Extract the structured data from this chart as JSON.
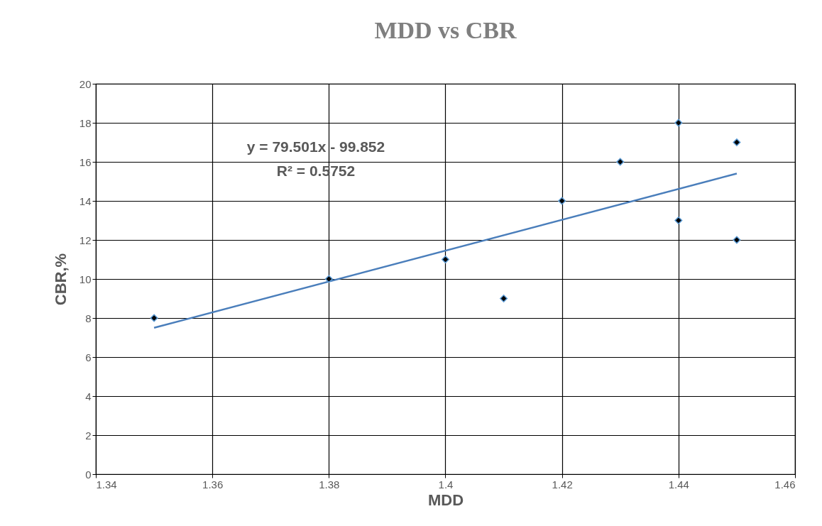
{
  "chart_data": {
    "type": "scatter",
    "title": "MDD vs CBR",
    "xlabel": "MDD",
    "ylabel": "CBR,%",
    "x": [
      1.35,
      1.38,
      1.4,
      1.41,
      1.42,
      1.43,
      1.44,
      1.44,
      1.45,
      1.45
    ],
    "series": [
      {
        "color": "#000000",
        "values": [
          8,
          10,
          11,
          9,
          14,
          16,
          18,
          13,
          17,
          12
        ]
      },
      {
        "type": "line",
        "color": "#4a7ebb",
        "marker": "none",
        "x": [
          1.35,
          1.45
        ],
        "values": [
          7.5,
          15.4
        ]
      }
    ],
    "annotations": [
      "y = 79.501x - 99.852",
      "R² = 0.5752"
    ],
    "xlim": [
      1.34,
      1.46
    ],
    "xticks": [
      1.34,
      1.36,
      1.38,
      1.4,
      1.42,
      1.44,
      1.46
    ],
    "ylim": [
      0,
      20
    ],
    "yticks": [
      0,
      2,
      4,
      6,
      8,
      10,
      12,
      14,
      16,
      18,
      20
    ],
    "grid": true,
    "marker": "diamond"
  }
}
